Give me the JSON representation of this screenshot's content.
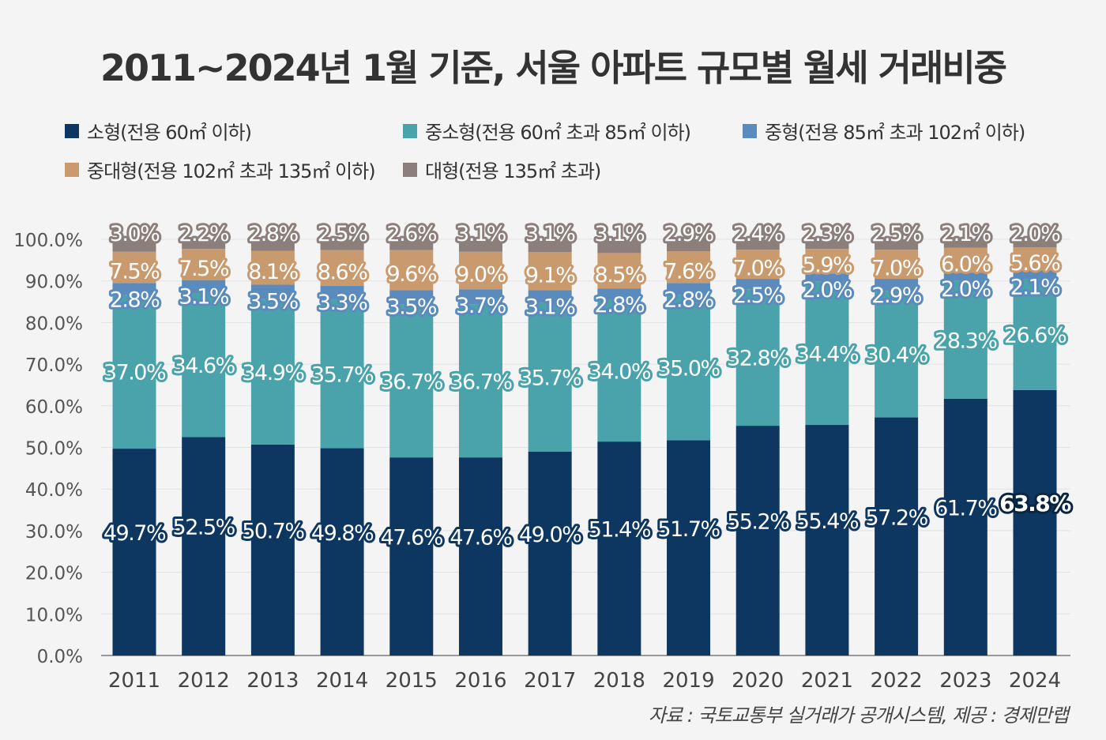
{
  "title": "2011~2024년 1월 기준, 서울 아파트 규모별 월세 거래비중",
  "source": "자료 : 국토교통부 실거래가 공개시스템, 제공 : 경제만랩",
  "chart_data": {
    "type": "bar",
    "stacked": true,
    "title": "2011~2024년 1월 기준, 서울 아파트 규모별 월세 거래비중",
    "categories": [
      "2011",
      "2012",
      "2013",
      "2014",
      "2015",
      "2016",
      "2017",
      "2018",
      "2019",
      "2020",
      "2021",
      "2022",
      "2023",
      "2024"
    ],
    "series": [
      {
        "name": "소형(전용 60㎡ 이하)",
        "color": "#0d3660",
        "values": [
          49.7,
          52.5,
          50.7,
          49.8,
          47.6,
          47.6,
          49.0,
          51.4,
          51.7,
          55.2,
          55.4,
          57.2,
          61.7,
          63.8
        ]
      },
      {
        "name": "중소형(전용 60㎡ 초과 85㎡ 이하)",
        "color": "#4aa3ab",
        "values": [
          37.0,
          34.6,
          34.9,
          35.7,
          36.7,
          36.7,
          35.7,
          34.0,
          35.0,
          32.8,
          34.4,
          30.4,
          28.3,
          26.6
        ]
      },
      {
        "name": "중형(전용 85㎡ 초과 102㎡ 이하)",
        "color": "#5b8bbd",
        "values": [
          2.8,
          3.1,
          3.5,
          3.3,
          3.5,
          3.7,
          3.1,
          2.8,
          2.8,
          2.5,
          2.0,
          2.9,
          2.0,
          2.1
        ]
      },
      {
        "name": "중대형(전용 102㎡ 초과 135㎡ 이하)",
        "color": "#c89a6e",
        "values": [
          7.5,
          7.5,
          8.1,
          8.6,
          9.6,
          9.0,
          9.1,
          8.5,
          7.6,
          7.0,
          5.9,
          7.0,
          6.0,
          5.6
        ]
      },
      {
        "name": "대형(전용 135㎡ 초과)",
        "color": "#8c7f7b",
        "values": [
          3.0,
          2.2,
          2.8,
          2.5,
          2.6,
          3.1,
          3.1,
          3.1,
          2.9,
          2.4,
          2.3,
          2.5,
          2.1,
          2.0
        ]
      }
    ],
    "yticks": [
      "0.0%",
      "10.0%",
      "20.0%",
      "30.0%",
      "40.0%",
      "50.0%",
      "60.0%",
      "70.0%",
      "80.0%",
      "90.0%",
      "100.0%"
    ],
    "ylim": [
      0,
      100
    ],
    "grid": true,
    "legend": "top",
    "highlight": "2024 소형 63.8%"
  }
}
